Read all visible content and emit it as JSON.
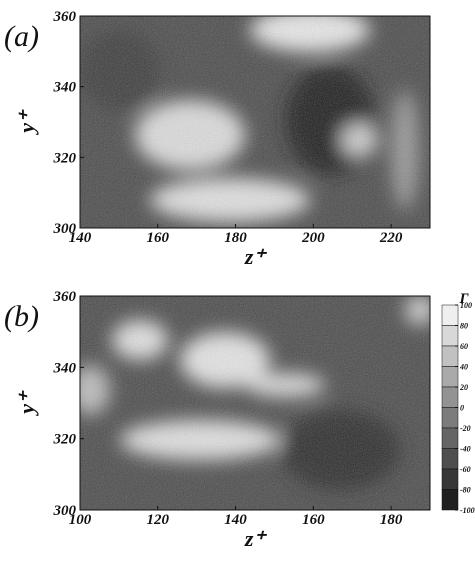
{
  "chart_data": [
    {
      "type": "contour",
      "title": "(a)",
      "xlabel": "z⁺",
      "ylabel": "y⁺",
      "xlim": [
        140,
        230
      ],
      "xticks": [
        140,
        160,
        180,
        200,
        220
      ],
      "ylim": [
        300,
        360
      ],
      "yticks": [
        300,
        320,
        340,
        360
      ]
    },
    {
      "type": "contour",
      "title": "(b)",
      "xlabel": "z⁺",
      "ylabel": "y⁺",
      "xlim": [
        100,
        190
      ],
      "xticks": [
        100,
        120,
        140,
        160,
        180
      ],
      "ylim": [
        300,
        360
      ],
      "yticks": [
        300,
        320,
        340,
        360
      ],
      "colorbar": {
        "label": "Γ",
        "lim": [
          -100,
          100
        ],
        "ticks": [
          100,
          80,
          60,
          40,
          20,
          0,
          -20,
          -40,
          -60,
          -80,
          -100
        ]
      }
    }
  ]
}
